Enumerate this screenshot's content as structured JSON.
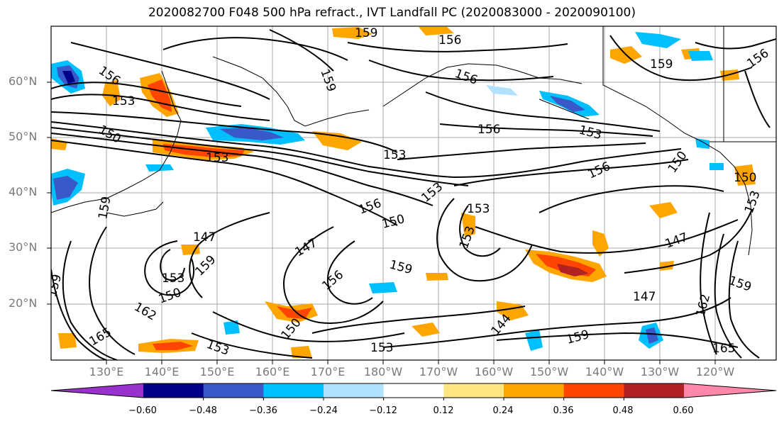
{
  "title": "2020082700 F048 500 hPa refract., IVT Landfall PC (2020083000 - 2020090100)",
  "lat_labels": [
    "60°N",
    "50°N",
    "40°N",
    "30°N",
    "20°N"
  ],
  "lon_labels": [
    "130°E",
    "140°E",
    "150°E",
    "160°E",
    "170°E",
    "180°W",
    "170°W",
    "160°W",
    "150°W",
    "140°W",
    "130°W",
    "120°W"
  ],
  "contour_labels": [
    "159",
    "156",
    "159",
    "156",
    "156",
    "159",
    "156",
    "153",
    "156",
    "153",
    "150",
    "153",
    "153",
    "156",
    "150",
    "150",
    "150",
    "156",
    "153",
    "153",
    "153",
    "147",
    "147",
    "153",
    "159",
    "159",
    "153",
    "150",
    "156",
    "147",
    "162",
    "165",
    "150",
    "159",
    "144",
    "147",
    "159",
    "153",
    "153",
    "165",
    "162",
    "159",
    "159"
  ],
  "colorbar": {
    "tick_labels": [
      "−0.60",
      "−0.48",
      "−0.36",
      "−0.24",
      "−0.12",
      "0.12",
      "0.24",
      "0.36",
      "0.48",
      "0.60"
    ],
    "colors": [
      "#9932cc",
      "#00008b",
      "#3a59c8",
      "#00bfff",
      "#b0e2ff",
      "#ffffff",
      "#ffe680",
      "#ffa500",
      "#ff4500",
      "#b22222",
      "#ff88aa"
    ]
  }
}
